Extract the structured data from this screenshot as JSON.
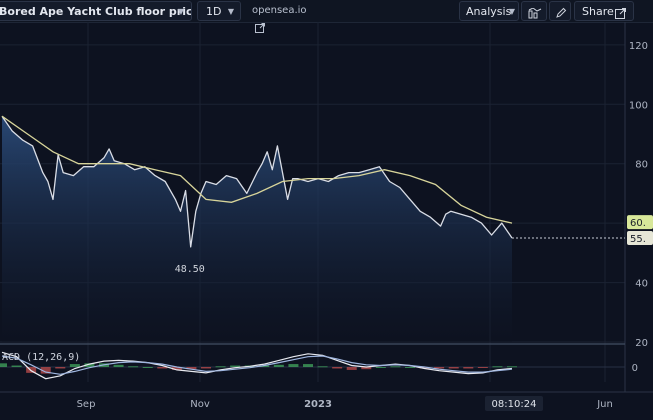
{
  "toolbar": {
    "symbol": "Bored Ape Yacht Club floor price",
    "interval": "1D",
    "source_link": "opensea.io",
    "analysis": "Analysis",
    "share": "Share"
  },
  "colors": {
    "background": "#0d1220",
    "price_line": "#d9dde6",
    "ma_line": "#d7d49a",
    "area_top": "#2a4a78",
    "area_bottom": "#0d1220",
    "macd_line": "#e8eaf0",
    "signal_line": "#9fb6e0",
    "hist_pos": "#3e9d5a",
    "hist_neg": "#b54a4a",
    "last_value_bg": "#e6e6d6",
    "ma_value_bg": "#d8e89a"
  },
  "chart_data": [
    {
      "type": "line",
      "title": "Bored Ape Yacht Club floor price",
      "ylim": [
        20,
        125
      ],
      "y_ticks": [
        120,
        100,
        80,
        60,
        40,
        20
      ],
      "x_tick_labels": [
        "Sep",
        "Nov",
        "2023",
        "Jun"
      ],
      "time_label": "08:10:24",
      "annotation": "48.50",
      "last_price": "55.",
      "ma_last": "60.",
      "series": [
        {
          "role": "price",
          "x": [
            0,
            0.02,
            0.04,
            0.06,
            0.08,
            0.09,
            0.1,
            0.11,
            0.12,
            0.14,
            0.16,
            0.18,
            0.2,
            0.21,
            0.22,
            0.24,
            0.26,
            0.28,
            0.3,
            0.32,
            0.34,
            0.35,
            0.36,
            0.37,
            0.38,
            0.39,
            0.4,
            0.42,
            0.44,
            0.46,
            0.48,
            0.5,
            0.51,
            0.52,
            0.53,
            0.54,
            0.55,
            0.56,
            0.57,
            0.58,
            0.6,
            0.62,
            0.64,
            0.66,
            0.68,
            0.7,
            0.72,
            0.74,
            0.76,
            0.78,
            0.8,
            0.82,
            0.84,
            0.86,
            0.87,
            0.88,
            0.9,
            0.92,
            0.94,
            0.96,
            0.98,
            1.0
          ],
          "values": [
            96,
            91,
            88,
            86,
            77,
            74,
            68,
            83,
            77,
            76,
            79,
            79,
            82,
            85,
            81,
            80,
            78,
            79,
            76,
            74,
            68,
            64,
            71,
            52,
            64,
            70,
            74,
            73,
            76,
            75,
            70,
            77,
            80,
            84,
            78,
            86,
            77,
            68,
            75,
            75,
            74,
            75,
            74,
            76,
            77,
            77,
            78,
            79,
            74,
            72,
            68,
            64,
            62,
            59,
            63,
            64,
            63,
            62,
            60,
            56,
            60,
            55
          ]
        },
        {
          "role": "moving-average",
          "x": [
            0,
            0.05,
            0.1,
            0.15,
            0.2,
            0.25,
            0.3,
            0.35,
            0.4,
            0.45,
            0.5,
            0.55,
            0.6,
            0.65,
            0.7,
            0.75,
            0.8,
            0.85,
            0.9,
            0.95,
            1.0
          ],
          "values": [
            96,
            90,
            84,
            80,
            80,
            80,
            78,
            76,
            68,
            67,
            70,
            74,
            75,
            75,
            76,
            78,
            76,
            73,
            66,
            62,
            60
          ]
        }
      ]
    },
    {
      "type": "line",
      "title": "ACD (12,26,9)",
      "y_ticks": [
        0
      ],
      "ylim": [
        -3,
        3
      ],
      "series": [
        {
          "role": "macd",
          "values": [
            2,
            1.4,
            -0.5,
            -1.6,
            -1.2,
            -0.2,
            0.4,
            0.8,
            0.9,
            0.8,
            0.6,
            0.2,
            -0.4,
            -0.6,
            -0.8,
            -0.4,
            -0.1,
            0.1,
            0.4,
            0.9,
            1.4,
            1.8,
            1.6,
            0.9,
            0.2,
            0.0,
            0.2,
            0.4,
            0.2,
            -0.2,
            -0.5,
            -0.7,
            -0.9,
            -0.8,
            -0.4,
            -0.2
          ]
        },
        {
          "role": "signal",
          "values": [
            1.5,
            1.2,
            0.3,
            -0.7,
            -1.0,
            -0.6,
            -0.1,
            0.3,
            0.6,
            0.7,
            0.6,
            0.4,
            0.0,
            -0.3,
            -0.6,
            -0.5,
            -0.3,
            -0.1,
            0.2,
            0.6,
            1.0,
            1.4,
            1.5,
            1.1,
            0.6,
            0.3,
            0.2,
            0.3,
            0.2,
            0.0,
            -0.3,
            -0.5,
            -0.7,
            -0.7,
            -0.5,
            -0.3
          ]
        }
      ]
    }
  ]
}
